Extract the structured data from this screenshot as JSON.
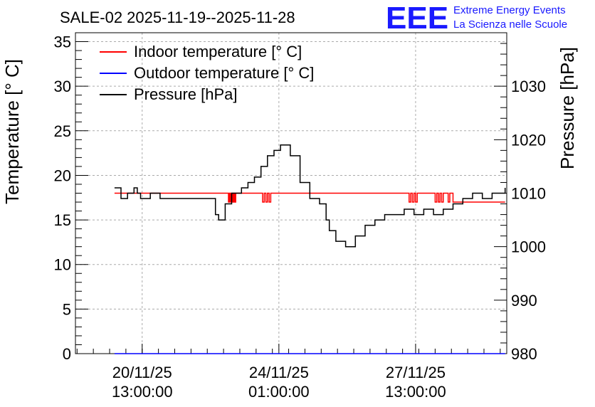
{
  "chart_data": {
    "type": "line",
    "title": "SALE-02 2025-11-19--2025-11-28",
    "ylabel": "Temperature [° C]",
    "y2label": "Pressure [hPa]",
    "ylim": [
      0,
      36
    ],
    "y2lim": [
      980,
      1040
    ],
    "xlim": [
      "2025-11-18 20:00",
      "2025-11-29 21:00"
    ],
    "grid": true,
    "legend_position": "top-left",
    "x_ticks": [
      {
        "line1": "20/11/25",
        "line2": "13:00:00",
        "x": "2025-11-20 13:00"
      },
      {
        "line1": "24/11/25",
        "line2": "01:00:00",
        "x": "2025-11-24 01:00"
      },
      {
        "line1": "27/11/25",
        "line2": "13:00:00",
        "x": "2025-11-27 13:00"
      }
    ],
    "y_ticks": [
      "0",
      "5",
      "10",
      "15",
      "20",
      "25",
      "30",
      "35"
    ],
    "y2_ticks": [
      "980",
      "990",
      "1000",
      "1010",
      "1020",
      "1030"
    ],
    "series": [
      {
        "name": "Indoor temperature [° C]",
        "color": "#ff0000",
        "axis": "left",
        "x": [
          "2025-11-19 20:00",
          "2025-11-22 14:00",
          "2025-11-22 18:00",
          "2025-11-22 18:30",
          "2025-11-22 19:00",
          "2025-11-22 19:30",
          "2025-11-22 20:00",
          "2025-11-22 20:30",
          "2025-11-22 21:00",
          "2025-11-22 21:30",
          "2025-11-22 22:00",
          "2025-11-22 22:30",
          "2025-11-22 23:00",
          "2025-11-23 14:00",
          "2025-11-23 15:00",
          "2025-11-23 16:00",
          "2025-11-23 17:00",
          "2025-11-23 18:00",
          "2025-11-23 19:00",
          "2025-11-23 20:00",
          "2025-11-23 21:00",
          "2025-11-27 08:00",
          "2025-11-27 09:00",
          "2025-11-27 10:00",
          "2025-11-27 11:00",
          "2025-11-27 12:00",
          "2025-11-27 13:00",
          "2025-11-27 14:00",
          "2025-11-28 00:00",
          "2025-11-28 01:00",
          "2025-11-28 02:00",
          "2025-11-28 03:00",
          "2025-11-28 04:00",
          "2025-11-28 05:00",
          "2025-11-28 06:00",
          "2025-11-28 09:00",
          "2025-11-28 10:00",
          "2025-11-28 12:00",
          "2025-11-29 20:00"
        ],
        "y": [
          18,
          18,
          17,
          18,
          17,
          18,
          17,
          18,
          17,
          18,
          17,
          18,
          18,
          18,
          17,
          18,
          17,
          18,
          17,
          18,
          18,
          18,
          17,
          18,
          17,
          18,
          17,
          18,
          18,
          17,
          18,
          17,
          18,
          17,
          18,
          17,
          18,
          17,
          17
        ]
      },
      {
        "name": "Outdoor temperature [° C]",
        "color": "#0000ff",
        "axis": "left",
        "x": [
          "2025-11-19 20:00",
          "2025-11-29 20:00"
        ],
        "y": [
          0,
          0
        ]
      },
      {
        "name": "Pressure [hPa]",
        "color": "#000000",
        "axis": "right",
        "x": [
          "2025-11-19 20:00",
          "2025-11-20 00:00",
          "2025-11-20 04:00",
          "2025-11-20 08:00",
          "2025-11-20 10:00",
          "2025-11-20 12:00",
          "2025-11-20 16:00",
          "2025-11-20 18:00",
          "2025-11-20 20:00",
          "2025-11-21 00:00",
          "2025-11-22 10:00",
          "2025-11-22 12:00",
          "2025-11-22 16:00",
          "2025-11-22 20:00",
          "2025-11-23 02:00",
          "2025-11-23 06:00",
          "2025-11-23 10:00",
          "2025-11-23 14:00",
          "2025-11-23 18:00",
          "2025-11-23 22:00",
          "2025-11-24 02:00",
          "2025-11-24 08:00",
          "2025-11-24 14:00",
          "2025-11-24 20:00",
          "2025-11-25 02:00",
          "2025-11-25 06:00",
          "2025-11-25 08:00",
          "2025-11-25 12:00",
          "2025-11-25 18:00",
          "2025-11-26 00:00",
          "2025-11-26 06:00",
          "2025-11-26 12:00",
          "2025-11-26 18:00",
          "2025-11-27 00:00",
          "2025-11-27 06:00",
          "2025-11-27 12:00",
          "2025-11-27 18:00",
          "2025-11-28 00:00",
          "2025-11-28 06:00",
          "2025-11-28 12:00",
          "2025-11-28 18:00",
          "2025-11-29 00:00",
          "2025-11-29 06:00",
          "2025-11-29 12:00",
          "2025-11-29 20:00"
        ],
        "y": [
          1011,
          1009,
          1010,
          1011,
          1010,
          1009,
          1009,
          1010,
          1010,
          1009,
          1006,
          1005,
          1008,
          1010,
          1011,
          1012,
          1013,
          1015,
          1017,
          1018,
          1019,
          1017,
          1012,
          1009,
          1008,
          1005,
          1003,
          1001,
          1000,
          1002,
          1004,
          1005,
          1006,
          1006,
          1007,
          1006,
          1007,
          1006,
          1007,
          1008,
          1009,
          1010,
          1009,
          1010,
          1011
        ]
      }
    ]
  },
  "logo": {
    "mark": "EEE",
    "line1": "Extreme Energy Events",
    "line2": "La Scienza nelle Scuole"
  }
}
